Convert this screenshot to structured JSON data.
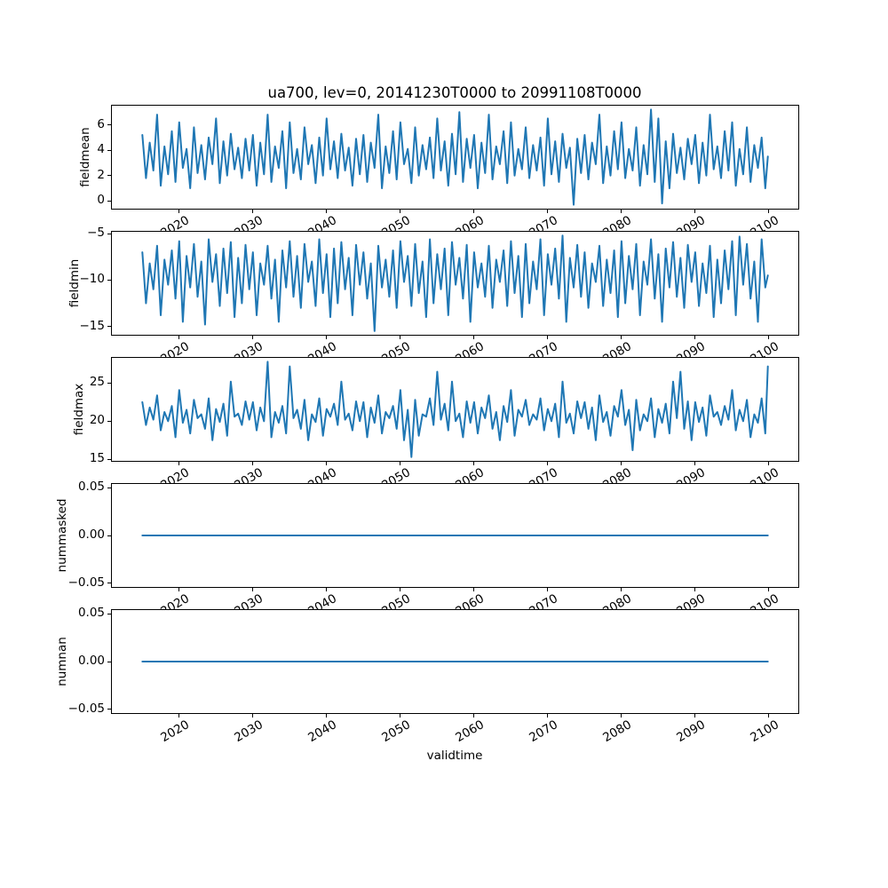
{
  "chart_data": {
    "type": "line",
    "title": "ua700, lev=0, 20141230T0000 to 20991108T0000",
    "xlabel": "validtime",
    "line_color": "#1f77b4",
    "grid": false,
    "legend": null,
    "xlim": [
      2010.75,
      2104.1
    ],
    "xticks": [
      2020,
      2030,
      2040,
      2050,
      2060,
      2070,
      2080,
      2090,
      2100
    ],
    "x_start": 2015.0,
    "x_step": 0.5,
    "x_end": 2099.85,
    "subplots": [
      {
        "ylabel": "fieldmean",
        "ylim": [
          -0.68,
          7.58
        ],
        "yticks": [
          0,
          2,
          4,
          6
        ],
        "ytick_labels": [
          "0",
          "2",
          "4",
          "6"
        ],
        "values": [
          5.2,
          1.8,
          4.6,
          2.4,
          6.8,
          1.2,
          4.3,
          2.1,
          5.5,
          1.5,
          6.2,
          2.6,
          4.1,
          1.0,
          5.8,
          2.2,
          4.4,
          1.7,
          5.0,
          2.9,
          6.5,
          1.4,
          4.7,
          2.0,
          5.3,
          2.5,
          4.2,
          1.8,
          4.9,
          2.4,
          5.2,
          1.2,
          4.6,
          2.1,
          6.8,
          1.5,
          4.3,
          2.6,
          5.5,
          1.0,
          6.2,
          2.2,
          4.1,
          1.7,
          5.8,
          2.9,
          4.4,
          1.4,
          5.0,
          2.0,
          6.5,
          2.5,
          4.7,
          1.8,
          5.3,
          2.4,
          4.2,
          1.2,
          4.9,
          2.1,
          5.2,
          1.5,
          4.6,
          2.6,
          6.8,
          1.0,
          4.3,
          2.2,
          5.5,
          1.7,
          6.2,
          2.9,
          4.1,
          1.4,
          5.8,
          2.0,
          4.4,
          2.5,
          5.0,
          1.8,
          6.5,
          2.4,
          4.7,
          1.2,
          5.3,
          2.1,
          7.0,
          1.5,
          4.9,
          2.6,
          5.2,
          1.0,
          4.6,
          2.2,
          6.8,
          1.7,
          4.3,
          2.9,
          5.5,
          1.4,
          6.2,
          2.0,
          4.1,
          2.5,
          5.8,
          1.8,
          4.4,
          2.4,
          5.0,
          1.2,
          6.5,
          2.1,
          4.7,
          1.5,
          5.3,
          2.6,
          4.2,
          -0.3,
          4.9,
          2.2,
          5.2,
          1.7,
          4.6,
          2.9,
          6.8,
          1.4,
          4.3,
          2.0,
          5.5,
          2.5,
          6.2,
          1.8,
          4.1,
          2.4,
          5.8,
          1.2,
          4.4,
          2.1,
          7.2,
          1.5,
          6.5,
          -0.2,
          4.7,
          1.0,
          5.3,
          2.2,
          4.2,
          1.7,
          4.9,
          2.9,
          5.2,
          1.4,
          4.6,
          2.0,
          6.8,
          2.5,
          4.3,
          1.8,
          5.5,
          2.4,
          6.2,
          1.2,
          4.1,
          2.1,
          5.8,
          1.5,
          4.4,
          2.6,
          5.0,
          1.0,
          3.5
        ]
      },
      {
        "ylabel": "fieldmin",
        "ylim": [
          -16.0,
          -4.69
        ],
        "yticks": [
          -5,
          -10,
          -15
        ],
        "ytick_labels": [
          "−5",
          "−10",
          "−15"
        ],
        "values": [
          -7.0,
          -12.5,
          -8.2,
          -11.0,
          -6.3,
          -13.8,
          -7.8,
          -10.5,
          -6.8,
          -12.0,
          -5.8,
          -14.5,
          -7.4,
          -10.8,
          -6.1,
          -11.8,
          -8.0,
          -14.8,
          -5.6,
          -10.2,
          -7.2,
          -12.8,
          -6.6,
          -11.4,
          -5.9,
          -14.0,
          -7.6,
          -12.5,
          -6.2,
          -11.0,
          -7.0,
          -13.8,
          -8.2,
          -10.5,
          -6.3,
          -12.0,
          -7.8,
          -14.5,
          -6.8,
          -10.8,
          -5.8,
          -11.8,
          -7.4,
          -13.0,
          -6.1,
          -10.2,
          -8.0,
          -12.8,
          -5.6,
          -11.4,
          -7.2,
          -14.0,
          -6.6,
          -12.5,
          -5.9,
          -11.0,
          -7.6,
          -13.8,
          -6.2,
          -10.5,
          -7.0,
          -12.0,
          -8.2,
          -15.5,
          -6.3,
          -10.8,
          -7.8,
          -11.8,
          -6.8,
          -13.0,
          -5.8,
          -10.2,
          -7.4,
          -12.8,
          -6.1,
          -11.4,
          -8.0,
          -14.0,
          -5.6,
          -12.5,
          -7.2,
          -11.0,
          -6.6,
          -13.8,
          -5.9,
          -10.5,
          -7.6,
          -12.0,
          -6.2,
          -14.5,
          -7.0,
          -10.8,
          -8.2,
          -11.8,
          -6.3,
          -13.0,
          -7.8,
          -10.2,
          -6.8,
          -12.8,
          -5.8,
          -11.4,
          -7.4,
          -14.0,
          -6.1,
          -12.5,
          -8.0,
          -11.0,
          -5.6,
          -13.8,
          -7.2,
          -10.5,
          -6.6,
          -12.0,
          -5.2,
          -14.5,
          -7.6,
          -10.8,
          -6.2,
          -11.8,
          -7.0,
          -13.0,
          -8.2,
          -10.2,
          -6.3,
          -12.8,
          -7.8,
          -11.4,
          -6.8,
          -14.0,
          -5.8,
          -12.5,
          -7.4,
          -11.0,
          -6.1,
          -13.8,
          -8.0,
          -10.5,
          -5.6,
          -12.0,
          -7.2,
          -14.5,
          -6.6,
          -10.8,
          -5.9,
          -11.8,
          -7.6,
          -13.0,
          -6.2,
          -10.2,
          -7.0,
          -12.8,
          -8.2,
          -11.4,
          -6.3,
          -14.0,
          -7.8,
          -12.5,
          -6.8,
          -11.0,
          -5.8,
          -13.8,
          -5.3,
          -10.5,
          -6.1,
          -12.0,
          -8.0,
          -14.5,
          -5.6,
          -10.8,
          -9.5
        ]
      },
      {
        "ylabel": "fieldmax",
        "ylim": [
          14.68,
          28.43
        ],
        "yticks": [
          15,
          20,
          25
        ],
        "ytick_labels": [
          "15",
          "20",
          "25"
        ],
        "values": [
          22.5,
          19.5,
          21.8,
          20.2,
          23.4,
          18.8,
          21.2,
          20.0,
          22.0,
          17.9,
          24.1,
          19.8,
          21.5,
          18.4,
          22.8,
          20.4,
          20.9,
          19.0,
          23.0,
          17.5,
          21.6,
          19.9,
          22.3,
          18.1,
          25.2,
          20.6,
          21.0,
          19.5,
          22.6,
          20.2,
          22.5,
          18.8,
          21.8,
          20.0,
          27.8,
          17.9,
          21.2,
          19.8,
          22.0,
          18.4,
          27.2,
          20.4,
          21.5,
          19.0,
          22.8,
          17.5,
          20.9,
          19.9,
          23.0,
          18.1,
          21.6,
          20.6,
          22.3,
          19.5,
          25.2,
          20.2,
          21.0,
          18.8,
          22.6,
          20.0,
          22.5,
          17.9,
          21.8,
          19.8,
          23.4,
          18.4,
          21.2,
          20.4,
          22.0,
          19.0,
          24.1,
          17.5,
          21.5,
          15.3,
          22.8,
          18.1,
          20.9,
          20.6,
          23.0,
          19.5,
          26.5,
          20.2,
          22.3,
          18.8,
          25.2,
          20.0,
          21.0,
          17.9,
          22.6,
          19.8,
          22.5,
          18.4,
          21.8,
          20.4,
          23.4,
          19.0,
          21.2,
          17.5,
          22.0,
          19.9,
          24.1,
          18.1,
          21.5,
          20.6,
          22.8,
          19.5,
          20.9,
          20.2,
          23.0,
          18.8,
          21.6,
          20.0,
          22.3,
          17.9,
          25.2,
          19.8,
          21.0,
          18.4,
          22.6,
          20.4,
          22.5,
          19.0,
          21.8,
          17.5,
          23.4,
          19.9,
          21.2,
          18.1,
          22.0,
          20.6,
          24.1,
          19.5,
          21.5,
          16.2,
          22.8,
          18.8,
          20.9,
          20.0,
          23.0,
          17.9,
          21.6,
          19.8,
          22.3,
          18.4,
          25.2,
          20.4,
          26.5,
          19.0,
          22.6,
          17.5,
          22.5,
          19.9,
          21.8,
          18.1,
          23.4,
          20.6,
          21.2,
          19.5,
          22.0,
          20.2,
          24.1,
          18.8,
          21.5,
          20.0,
          22.8,
          17.9,
          20.9,
          19.8,
          23.0,
          18.4,
          27.2
        ]
      },
      {
        "ylabel": "nummasked",
        "ylim": [
          -0.055,
          0.055
        ],
        "yticks": [
          0.05,
          0.0,
          -0.05
        ],
        "ytick_labels": [
          "0.05",
          "0.00",
          "−0.05"
        ],
        "x": [
          2015.0,
          2099.85
        ],
        "values": [
          0,
          0
        ]
      },
      {
        "ylabel": "numnan",
        "ylim": [
          -0.055,
          0.055
        ],
        "yticks": [
          0.05,
          0.0,
          -0.05
        ],
        "ytick_labels": [
          "0.05",
          "0.00",
          "−0.05"
        ],
        "x": [
          2015.0,
          2099.85
        ],
        "values": [
          0,
          0
        ]
      }
    ]
  }
}
